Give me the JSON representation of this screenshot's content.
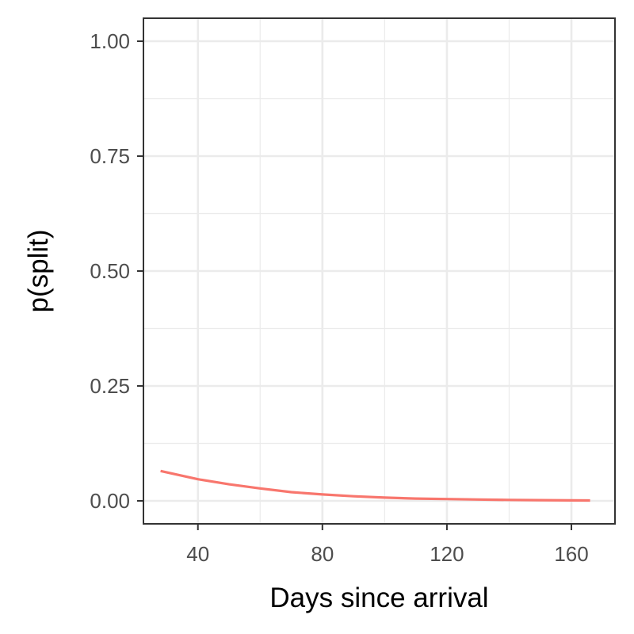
{
  "chart_data": {
    "type": "line",
    "title": "",
    "xlabel": "Days since arrival",
    "ylabel": "p(split)",
    "xlim": [
      22.5,
      174
    ],
    "ylim": [
      -0.05,
      1.05
    ],
    "x_ticks": [
      40,
      80,
      120,
      160
    ],
    "x_tick_labels": [
      "40",
      "80",
      "120",
      "160"
    ],
    "y_ticks": [
      0,
      0.25,
      0.5,
      0.75,
      1.0
    ],
    "y_tick_labels": [
      "0.00",
      "0.25",
      "0.50",
      "0.75",
      "1.00"
    ],
    "grid": true,
    "legend": "none",
    "series": [
      {
        "color": "#F8766D",
        "x": [
          28,
          40,
          50,
          60,
          70,
          80,
          90,
          100,
          110,
          120,
          130,
          140,
          150,
          160,
          166
        ],
        "y": [
          0.065,
          0.047,
          0.036,
          0.027,
          0.019,
          0.014,
          0.01,
          0.007,
          0.005,
          0.004,
          0.003,
          0.002,
          0.0015,
          0.001,
          0.0008
        ]
      }
    ]
  }
}
